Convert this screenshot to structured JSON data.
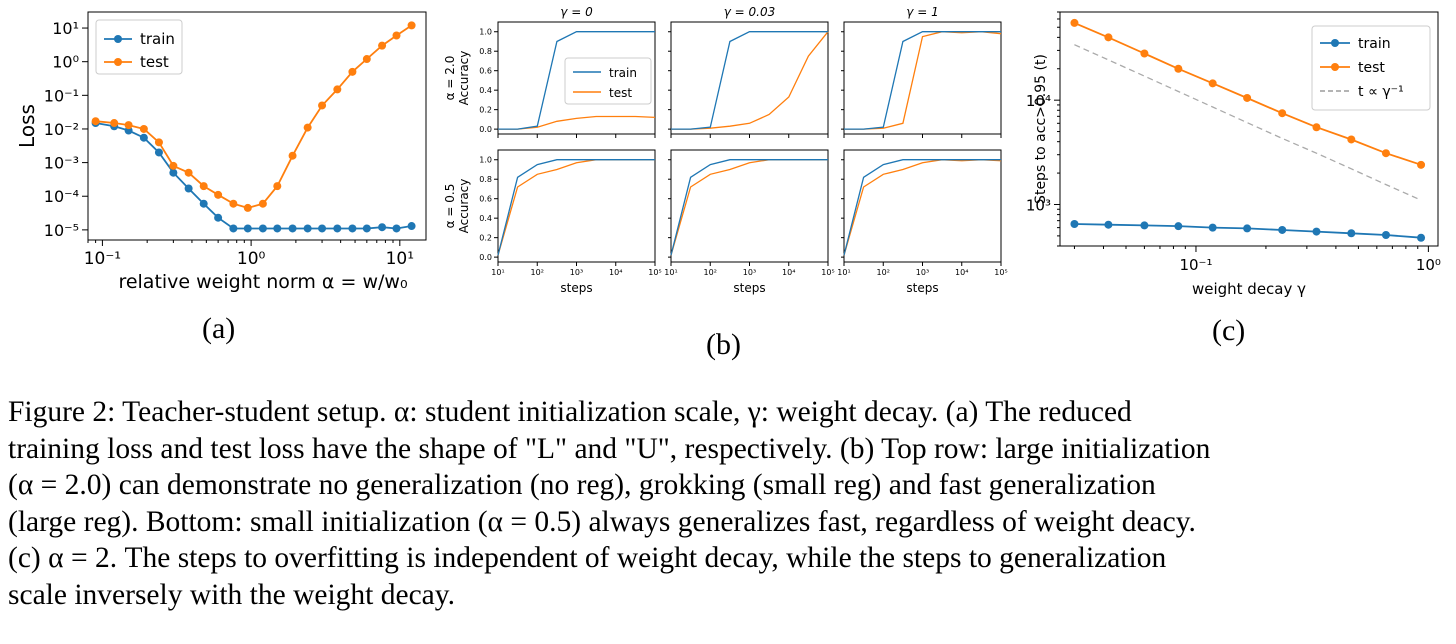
{
  "colors": {
    "train": "#1f77b4",
    "test": "#ff7f0e",
    "ref": "#aaaaaa"
  },
  "subfigure_labels": [
    "(a)",
    "(b)",
    "(c)"
  ],
  "caption_lines": [
    "Figure 2: Teacher-student setup. α: student initialization scale, γ: weight decay. (a) The reduced",
    "training loss and test loss have the shape of \"L\" and \"U\", respectively. (b) Top row: large initialization",
    "(α = 2.0) can demonstrate no generalization (no reg), grokking (small reg) and fast generalization",
    "(large reg). Bottom: small initialization (α = 0.5) always generalizes fast, regardless of weight deacy.",
    "(c) α = 2. The steps to overfitting is independent of weight decay, while the steps to generalization",
    "scale inversely with the weight decay."
  ],
  "chart_data": [
    {
      "id": "a",
      "type": "line",
      "xlabel": "relative weight norm α = w/w₀",
      "ylabel": "Loss",
      "xscale": "log",
      "yscale": "log",
      "xlim": [
        0.08,
        15
      ],
      "ylim": [
        5e-06,
        30
      ],
      "xtick_labels": [
        "10⁻¹",
        "10⁰",
        "10¹"
      ],
      "ytick_labels": [
        "10⁻⁵",
        "10⁻⁴",
        "10⁻³",
        "10⁻²",
        "10⁻¹",
        "10⁰",
        "10¹"
      ],
      "legend": [
        "train",
        "test"
      ],
      "legend_position": "top-left",
      "x": [
        0.09,
        0.12,
        0.15,
        0.19,
        0.24,
        0.3,
        0.38,
        0.48,
        0.6,
        0.76,
        0.95,
        1.2,
        1.5,
        1.9,
        2.4,
        3.0,
        3.8,
        4.8,
        6.0,
        7.6,
        9.5,
        12.0
      ],
      "series": [
        {
          "name": "train",
          "values": [
            0.015,
            0.012,
            0.009,
            0.0055,
            0.002,
            0.0005,
            0.00017,
            6e-05,
            2.3e-05,
            1.1e-05,
            1.1e-05,
            1.1e-05,
            1.1e-05,
            1.1e-05,
            1.1e-05,
            1.1e-05,
            1.1e-05,
            1.1e-05,
            1.1e-05,
            1.2e-05,
            1.1e-05,
            1.3e-05
          ]
        },
        {
          "name": "test",
          "values": [
            0.017,
            0.015,
            0.013,
            0.01,
            0.004,
            0.0008,
            0.0005,
            0.0002,
            0.00011,
            6e-05,
            4.5e-05,
            6e-05,
            0.0002,
            0.0016,
            0.011,
            0.05,
            0.15,
            0.5,
            1.2,
            3.0,
            6.0,
            12.0
          ]
        }
      ]
    },
    {
      "id": "b",
      "type": "line",
      "panel_titles": [
        "γ = 0",
        "γ = 0.03",
        "γ = 1"
      ],
      "row_labels": [
        "α = 2.0",
        "α = 0.5"
      ],
      "ylabel": "Accuracy",
      "xlabel": "steps",
      "xscale": "log",
      "xlim": [
        10,
        100000
      ],
      "ylim": [
        -0.05,
        1.1
      ],
      "xtick_labels": [
        "10¹",
        "10²",
        "10³",
        "10⁴",
        "10⁵"
      ],
      "ytick_labels": [
        "0.0",
        "0.2",
        "0.4",
        "0.6",
        "0.8",
        "1.0"
      ],
      "legend": [
        "train",
        "test"
      ],
      "legend_position": "center-right (top-left panel)",
      "curve_points_logsteps": [
        1,
        1.5,
        2,
        2.5,
        3,
        3.5,
        4,
        4.5,
        5
      ],
      "panels": [
        {
          "row": 0,
          "col": 0,
          "train": [
            0.0,
            0.0,
            0.03,
            0.9,
            1.0,
            1.0,
            1.0,
            1.0,
            1.0
          ],
          "test": [
            0.0,
            0.0,
            0.02,
            0.08,
            0.11,
            0.13,
            0.13,
            0.13,
            0.12
          ]
        },
        {
          "row": 0,
          "col": 1,
          "train": [
            0.0,
            0.0,
            0.02,
            0.9,
            1.0,
            1.0,
            1.0,
            1.0,
            1.0
          ],
          "test": [
            0.0,
            0.0,
            0.01,
            0.03,
            0.06,
            0.15,
            0.33,
            0.75,
            1.0
          ]
        },
        {
          "row": 0,
          "col": 2,
          "train": [
            0.0,
            0.0,
            0.02,
            0.9,
            1.0,
            1.0,
            1.0,
            1.0,
            1.0
          ],
          "test": [
            0.0,
            0.0,
            0.01,
            0.06,
            0.95,
            1.0,
            0.99,
            1.0,
            0.98
          ]
        },
        {
          "row": 1,
          "col": 0,
          "train": [
            0.02,
            0.82,
            0.95,
            1.0,
            1.0,
            1.0,
            1.0,
            1.0,
            1.0
          ],
          "test": [
            0.02,
            0.72,
            0.85,
            0.9,
            0.97,
            1.0,
            1.0,
            1.0,
            1.0
          ]
        },
        {
          "row": 1,
          "col": 1,
          "train": [
            0.02,
            0.82,
            0.95,
            1.0,
            1.0,
            1.0,
            1.0,
            1.0,
            1.0
          ],
          "test": [
            0.02,
            0.72,
            0.85,
            0.9,
            0.97,
            1.0,
            1.0,
            1.0,
            1.0
          ]
        },
        {
          "row": 1,
          "col": 2,
          "train": [
            0.02,
            0.82,
            0.95,
            1.0,
            1.0,
            1.0,
            1.0,
            1.0,
            1.0
          ],
          "test": [
            0.02,
            0.72,
            0.85,
            0.9,
            0.97,
            1.0,
            0.99,
            1.0,
            0.99
          ]
        }
      ]
    },
    {
      "id": "c",
      "type": "line",
      "xlabel": "weight decay γ",
      "ylabel": "Steps to acc>0.95 (t)",
      "xscale": "log",
      "yscale": "log",
      "xlim": [
        0.026,
        1.1
      ],
      "ylim": [
        400,
        70000
      ],
      "xtick_labels": [
        "10⁻¹",
        "10⁰"
      ],
      "ytick_labels": [
        "10³",
        "10⁴"
      ],
      "legend": [
        "train",
        "test",
        "t ∝ γ⁻¹"
      ],
      "legend_position": "top-right",
      "x": [
        0.03,
        0.042,
        0.06,
        0.084,
        0.118,
        0.166,
        0.235,
        0.33,
        0.466,
        0.657,
        0.93
      ],
      "series": [
        {
          "name": "train",
          "values": [
            650,
            640,
            630,
            620,
            600,
            590,
            570,
            550,
            530,
            510,
            480
          ]
        },
        {
          "name": "test",
          "values": [
            55000,
            40000,
            28000,
            20000,
            14500,
            10500,
            7500,
            5500,
            4200,
            3100,
            2400
          ]
        },
        {
          "name": "t ∝ γ⁻¹",
          "values": [
            34000,
            24300,
            17000,
            12100,
            8600,
            6100,
            4300,
            3100,
            2200,
            1550,
            1100
          ]
        }
      ]
    }
  ]
}
